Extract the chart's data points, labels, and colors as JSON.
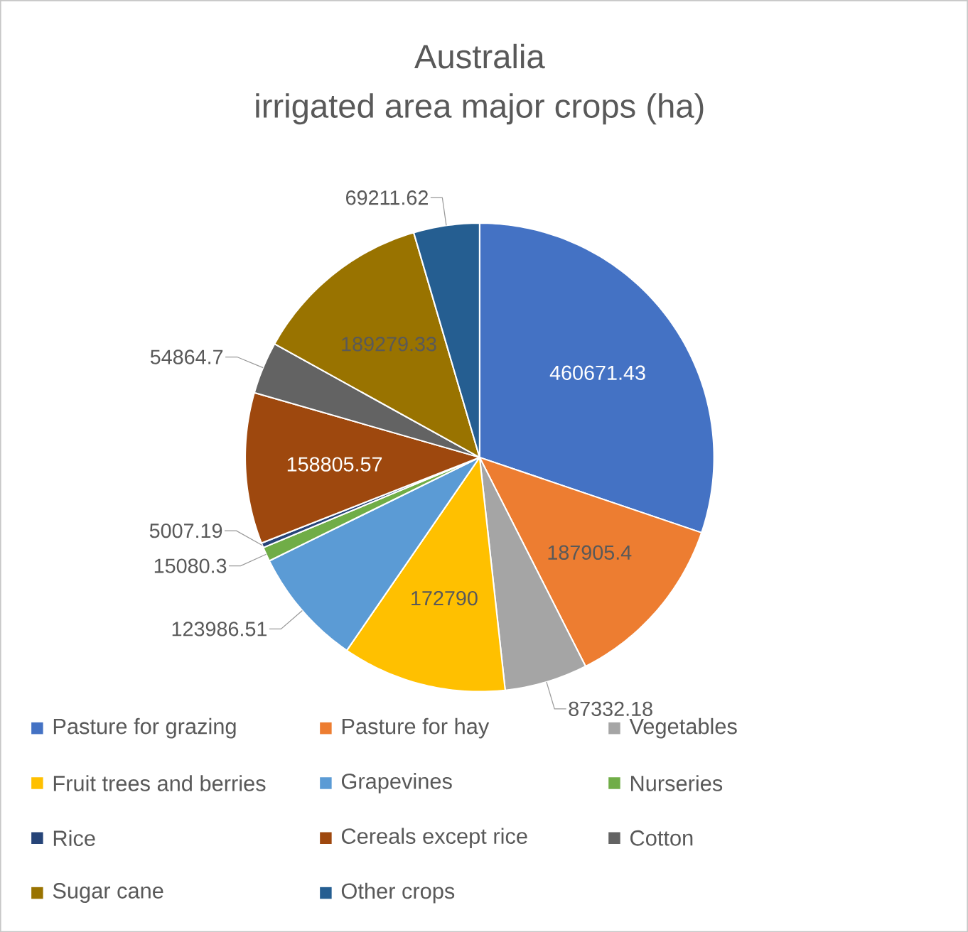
{
  "chart_data": {
    "type": "pie",
    "title": "Australia",
    "subtitle": "irrigated area major crops (ha)",
    "categories": [
      "Pasture for grazing",
      "Pasture for hay",
      "Vegetables",
      "Fruit trees and berries",
      "Grapevines",
      "Nurseries",
      "Rice",
      "Cereals except rice",
      "Cotton",
      "Sugar cane",
      "Other crops"
    ],
    "values": [
      460671.43,
      187905.4,
      87332.18,
      172790,
      123986.51,
      15080.3,
      5007.19,
      158805.57,
      54864.7,
      189279.33,
      69211.62
    ],
    "colors": [
      "#4472c4",
      "#ed7d31",
      "#a5a5a5",
      "#ffc000",
      "#5b9bd5",
      "#70ad47",
      "#264478",
      "#9e480e",
      "#636363",
      "#997300",
      "#255e91"
    ],
    "data_labels": true,
    "legend": "bottom"
  }
}
